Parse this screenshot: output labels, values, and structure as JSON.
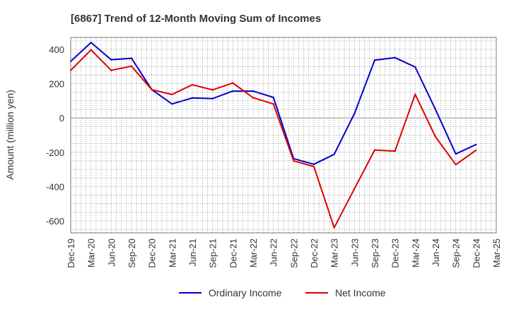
{
  "chart_data": {
    "type": "line",
    "title": "[6867]  Trend of 12-Month Moving Sum of Incomes",
    "xlabel": "",
    "ylabel": "Amount (million yen)",
    "ylim": [
      -670,
      470
    ],
    "yticks": [
      400,
      200,
      0,
      -200,
      -400,
      -600
    ],
    "grid": true,
    "legend_position": "bottom-center",
    "categories": [
      "Dec-19",
      "Mar-20",
      "Jun-20",
      "Sep-20",
      "Dec-20",
      "Mar-21",
      "Jun-21",
      "Sep-21",
      "Dec-21",
      "Mar-22",
      "Jun-22",
      "Sep-22",
      "Dec-22",
      "Mar-23",
      "Jun-23",
      "Sep-23",
      "Dec-23",
      "Mar-24",
      "Jun-24",
      "Sep-24",
      "Dec-24",
      "Mar-25"
    ],
    "series": [
      {
        "name": "Ordinary Income",
        "color": "#0000cc",
        "values": [
          330,
          440,
          340,
          348,
          165,
          82,
          117,
          113,
          157,
          157,
          120,
          -237,
          -270,
          -212,
          25,
          337,
          352,
          297,
          50,
          -210,
          -155,
          null
        ]
      },
      {
        "name": "Net Income",
        "color": "#dd0000",
        "values": [
          278,
          397,
          278,
          302,
          165,
          137,
          194,
          164,
          204,
          118,
          82,
          -250,
          -283,
          -640,
          -413,
          -187,
          -193,
          138,
          -110,
          -272,
          -188,
          null
        ]
      }
    ]
  }
}
